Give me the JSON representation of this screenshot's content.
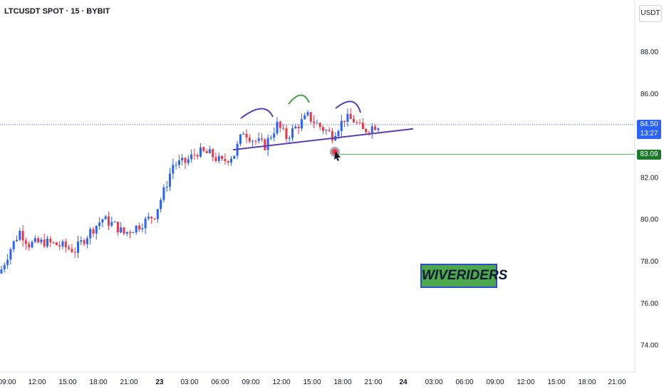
{
  "symbol_title": "LTCUSDT SPOT · 15 · BYBIT",
  "currency_button": "USDT",
  "watermark": "WIVERIDERS",
  "last_price_label": "84.50",
  "countdown_label": "13:27",
  "level_label": "83.09",
  "colors": {
    "up": "#2962ff",
    "down": "#f23645",
    "trendline": "#5b3eb3",
    "level_line": "#4caf50",
    "last_price_line": "#2962ff",
    "arc_left": "#5b3eb3",
    "arc_mid": "#43a047",
    "arc_right": "#5b3eb3"
  },
  "chart_data": {
    "type": "candlestick",
    "interval": "15",
    "y_axis": {
      "ticks": [
        "74.00",
        "76.00",
        "78.00",
        "80.00",
        "82.00",
        "84.00",
        "86.00",
        "88.00"
      ],
      "range": [
        72.5,
        90.5
      ]
    },
    "x_axis": {
      "ticks": [
        "09:00",
        "12:00",
        "15:00",
        "18:00",
        "21:00",
        "23",
        "03:00",
        "06:00",
        "09:00",
        "12:00",
        "15:00",
        "18:00",
        "21:00",
        "24",
        "03:00",
        "06:00",
        "09:00",
        "12:00",
        "15:00",
        "18:00",
        "21:00"
      ],
      "bold_ticks": [
        "23",
        "24"
      ]
    },
    "last_price": 84.5,
    "horizontal_level": 83.09,
    "trendline": {
      "from_time": "06:30",
      "from_price": 83.3,
      "to_time": "23:00",
      "to_price": 84.3
    },
    "price_waypoints": [
      {
        "t": 0,
        "p": 77.6
      },
      {
        "t": 3,
        "p": 78.6
      },
      {
        "t": 6,
        "p": 79.4
      },
      {
        "t": 9,
        "p": 78.8
      },
      {
        "t": 14,
        "p": 78.9
      },
      {
        "t": 20,
        "p": 78.7
      },
      {
        "t": 24,
        "p": 78.5
      },
      {
        "t": 29,
        "p": 79.4
      },
      {
        "t": 33,
        "p": 80.0
      },
      {
        "t": 37,
        "p": 79.7
      },
      {
        "t": 40,
        "p": 79.3
      },
      {
        "t": 45,
        "p": 79.7
      },
      {
        "t": 50,
        "p": 80.2
      },
      {
        "t": 53,
        "p": 81.3
      },
      {
        "t": 56,
        "p": 82.6
      },
      {
        "t": 60,
        "p": 82.7
      },
      {
        "t": 64,
        "p": 83.2
      },
      {
        "t": 68,
        "p": 83.1
      },
      {
        "t": 72,
        "p": 82.7
      },
      {
        "t": 76,
        "p": 83.1
      },
      {
        "t": 79,
        "p": 84.2
      },
      {
        "t": 82,
        "p": 83.8
      },
      {
        "t": 86,
        "p": 83.5
      },
      {
        "t": 90,
        "p": 84.5
      },
      {
        "t": 93,
        "p": 83.9
      },
      {
        "t": 97,
        "p": 84.5
      },
      {
        "t": 100,
        "p": 84.9
      },
      {
        "t": 104,
        "p": 84.4
      },
      {
        "t": 108,
        "p": 84.0
      },
      {
        "t": 112,
        "p": 84.8
      },
      {
        "t": 115,
        "p": 84.7
      },
      {
        "t": 118,
        "p": 84.2
      },
      {
        "t": 121,
        "p": 84.4
      },
      {
        "t": 123,
        "p": 84.5
      }
    ],
    "n_candles": 124
  }
}
